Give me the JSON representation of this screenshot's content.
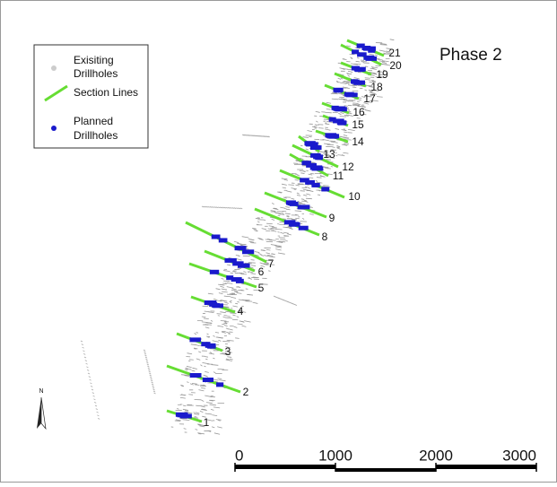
{
  "title": "Phase 2",
  "legend": {
    "items": [
      {
        "lines": [
          "Exisiting",
          "Drillholes"
        ]
      },
      {
        "lines": [
          "Section Lines"
        ]
      },
      {
        "lines": [
          "Planned",
          "Drillholes"
        ]
      }
    ]
  },
  "sections": [
    1,
    2,
    3,
    4,
    5,
    6,
    7,
    8,
    9,
    10,
    11,
    12,
    13,
    14,
    15,
    16,
    17,
    18,
    19,
    20,
    21
  ],
  "north": "N",
  "scale_bar": {
    "ticks": [
      0,
      1000,
      2000,
      3000
    ]
  }
}
